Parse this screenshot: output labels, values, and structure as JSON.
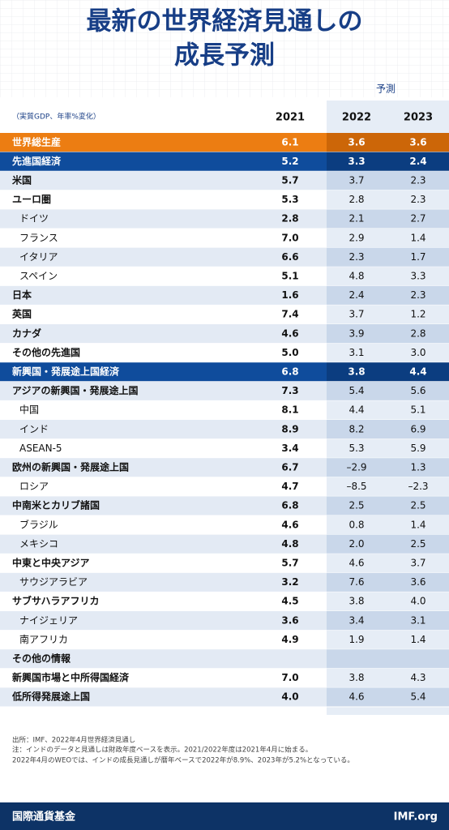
{
  "header": {
    "title": [
      "最新の世界経済見通しの",
      "成長予測"
    ]
  },
  "table": {
    "forecast_label": "予測",
    "unit_note": "（実質GDP、年率%変化）",
    "columns": [
      "2021",
      "2022",
      "2023"
    ],
    "rows": [
      {
        "label": "世界総生産",
        "values": [
          "6.1",
          "3.6",
          "3.6"
        ],
        "kind": "total"
      },
      {
        "label": "先進国経済",
        "values": [
          "5.2",
          "3.3",
          "2.4"
        ],
        "kind": "group"
      },
      {
        "label": "米国",
        "values": [
          "5.7",
          "3.7",
          "2.3"
        ],
        "kind": "bold"
      },
      {
        "label": "ユーロ圏",
        "values": [
          "5.3",
          "2.8",
          "2.3"
        ],
        "kind": "bold"
      },
      {
        "label": "ドイツ",
        "values": [
          "2.8",
          "2.1",
          "2.7"
        ],
        "kind": "sub"
      },
      {
        "label": "フランス",
        "values": [
          "7.0",
          "2.9",
          "1.4"
        ],
        "kind": "sub"
      },
      {
        "label": "イタリア",
        "values": [
          "6.6",
          "2.3",
          "1.7"
        ],
        "kind": "sub"
      },
      {
        "label": "スペイン",
        "values": [
          "5.1",
          "4.8",
          "3.3"
        ],
        "kind": "sub"
      },
      {
        "label": "日本",
        "values": [
          "1.6",
          "2.4",
          "2.3"
        ],
        "kind": "bold"
      },
      {
        "label": "英国",
        "values": [
          "7.4",
          "3.7",
          "1.2"
        ],
        "kind": "bold"
      },
      {
        "label": "カナダ",
        "values": [
          "4.6",
          "3.9",
          "2.8"
        ],
        "kind": "bold"
      },
      {
        "label": "その他の先進国",
        "values": [
          "5.0",
          "3.1",
          "3.0"
        ],
        "kind": "bold"
      },
      {
        "label": "新興国・発展途上国経済",
        "values": [
          "6.8",
          "3.8",
          "4.4"
        ],
        "kind": "group"
      },
      {
        "label": "アジアの新興国・発展途上国",
        "values": [
          "7.3",
          "5.4",
          "5.6"
        ],
        "kind": "bold"
      },
      {
        "label": "中国",
        "values": [
          "8.1",
          "4.4",
          "5.1"
        ],
        "kind": "sub"
      },
      {
        "label": "インド",
        "values": [
          "8.9",
          "8.2",
          "6.9"
        ],
        "kind": "sub"
      },
      {
        "label": "ASEAN-5",
        "values": [
          "3.4",
          "5.3",
          "5.9"
        ],
        "kind": "sub"
      },
      {
        "label": "欧州の新興国・発展途上国",
        "values": [
          "6.7",
          "–2.9",
          "1.3"
        ],
        "kind": "bold"
      },
      {
        "label": "ロシア",
        "values": [
          "4.7",
          "–8.5",
          "–2.3"
        ],
        "kind": "sub"
      },
      {
        "label": "中南米とカリブ諸国",
        "values": [
          "6.8",
          "2.5",
          "2.5"
        ],
        "kind": "bold"
      },
      {
        "label": "ブラジル",
        "values": [
          "4.6",
          "0.8",
          "1.4"
        ],
        "kind": "sub"
      },
      {
        "label": "メキシコ",
        "values": [
          "4.8",
          "2.0",
          "2.5"
        ],
        "kind": "sub"
      },
      {
        "label": "中東と中央アジア",
        "values": [
          "5.7",
          "4.6",
          "3.7"
        ],
        "kind": "bold"
      },
      {
        "label": "サウジアラビア",
        "values": [
          "3.2",
          "7.6",
          "3.6"
        ],
        "kind": "sub"
      },
      {
        "label": "サブサハラアフリカ",
        "values": [
          "4.5",
          "3.8",
          "4.0"
        ],
        "kind": "bold"
      },
      {
        "label": "ナイジェリア",
        "values": [
          "3.6",
          "3.4",
          "3.1"
        ],
        "kind": "sub"
      },
      {
        "label": "南アフリカ",
        "values": [
          "4.9",
          "1.9",
          "1.4"
        ],
        "kind": "sub"
      },
      {
        "label": "その他の情報",
        "values": [],
        "kind": "bold"
      },
      {
        "label": "新興国市場と中所得国経済",
        "values": [
          "7.0",
          "3.8",
          "4.3"
        ],
        "kind": "bold"
      },
      {
        "label": "低所得発展途上国",
        "values": [
          "4.0",
          "4.6",
          "5.4"
        ],
        "kind": "bold"
      }
    ]
  },
  "notes": [
    "出所：IMF、2022年4月世界経済見通し",
    "注：インドのデータと見通しは財政年度ベースを表示。2021/2022年度は2021年4月に始まる。",
    "2022年4月のWEOでは、インドの成長見通しが暦年ベースで2022年が8.9%、2023年が5.2%となっている。"
  ],
  "footer": {
    "org": "国際通貨基金",
    "site": "IMF.org"
  }
}
